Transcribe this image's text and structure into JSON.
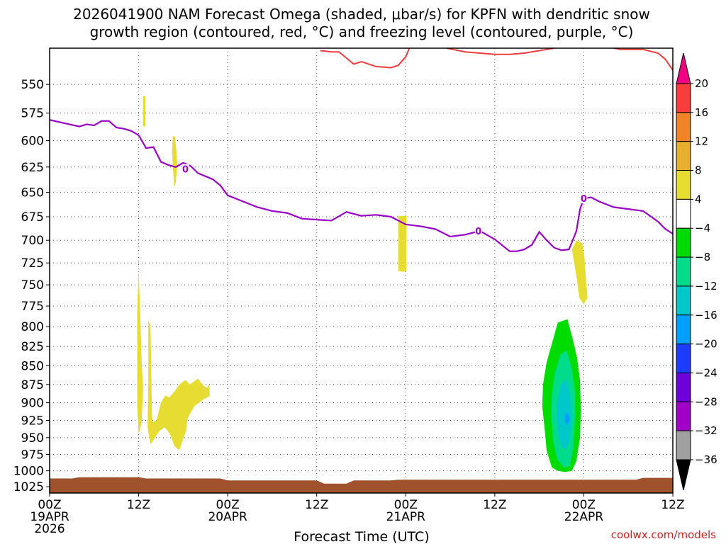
{
  "chart_data": {
    "type": "contour-timeheight",
    "title_line1": "2026041900 NAM Forecast Omega (shaded, μbar/s) for KPFN with dendritic snow",
    "title_line2": "growth region (contoured, red, °C) and freezing level (contoured, purple, °C)",
    "xlabel": "Forecast Time (UTC)",
    "credit": "coolwx.com/models",
    "credit_color": "#cc2222",
    "x_range_hours": [
      0,
      84
    ],
    "y_range_hPa": [
      520,
      1035
    ],
    "y_ticks": [
      550,
      575,
      600,
      625,
      650,
      675,
      700,
      725,
      750,
      775,
      800,
      825,
      850,
      875,
      900,
      925,
      950,
      975,
      1000,
      1025
    ],
    "x_ticks": [
      {
        "hour": 0,
        "l1": "00Z",
        "l2": "19APR",
        "l3": "2026"
      },
      {
        "hour": 12,
        "l1": "12Z",
        "l2": "",
        "l3": ""
      },
      {
        "hour": 24,
        "l1": "00Z",
        "l2": "20APR",
        "l3": ""
      },
      {
        "hour": 36,
        "l1": "12Z",
        "l2": "",
        "l3": ""
      },
      {
        "hour": 48,
        "l1": "00Z",
        "l2": "21APR",
        "l3": ""
      },
      {
        "hour": 60,
        "l1": "12Z",
        "l2": "",
        "l3": ""
      },
      {
        "hour": 72,
        "l1": "00Z",
        "l2": "22APR",
        "l3": ""
      },
      {
        "hour": 84,
        "l1": "12Z",
        "l2": "",
        "l3": ""
      }
    ],
    "freezing_level": {
      "color": "#9a00c8",
      "label": "0",
      "label_points": [
        [
          18.3,
          627
        ],
        [
          57.8,
          690
        ],
        [
          72.0,
          656
        ]
      ],
      "points": [
        [
          0,
          581
        ],
        [
          2,
          584
        ],
        [
          4,
          587
        ],
        [
          5,
          585
        ],
        [
          6,
          586
        ],
        [
          7,
          582
        ],
        [
          8,
          582
        ],
        [
          9,
          588
        ],
        [
          10,
          589
        ],
        [
          11,
          591
        ],
        [
          12,
          595
        ],
        [
          13,
          607
        ],
        [
          14,
          606
        ],
        [
          15,
          620
        ],
        [
          16,
          623
        ],
        [
          17,
          625
        ],
        [
          18,
          621
        ],
        [
          19,
          624
        ],
        [
          20,
          631
        ],
        [
          21,
          634
        ],
        [
          22,
          637
        ],
        [
          23,
          643
        ],
        [
          24,
          653
        ],
        [
          26,
          659
        ],
        [
          28,
          665
        ],
        [
          30,
          669
        ],
        [
          32,
          671
        ],
        [
          34,
          677
        ],
        [
          36,
          678
        ],
        [
          38,
          679
        ],
        [
          40,
          670
        ],
        [
          42,
          674
        ],
        [
          44,
          673
        ],
        [
          46,
          675
        ],
        [
          48,
          683
        ],
        [
          50,
          685
        ],
        [
          52,
          688
        ],
        [
          54,
          696
        ],
        [
          56,
          694
        ],
        [
          58,
          690
        ],
        [
          60,
          699
        ],
        [
          62,
          712
        ],
        [
          63,
          712
        ],
        [
          64,
          710
        ],
        [
          65,
          705
        ],
        [
          66,
          691
        ],
        [
          67,
          700
        ],
        [
          68,
          708
        ],
        [
          69,
          711
        ],
        [
          70,
          710
        ],
        [
          71,
          690
        ],
        [
          71.5,
          667
        ],
        [
          72,
          656
        ],
        [
          73,
          655
        ],
        [
          74,
          659
        ],
        [
          76,
          665
        ],
        [
          78,
          667
        ],
        [
          80,
          669
        ],
        [
          82,
          680
        ],
        [
          83,
          688
        ],
        [
          84,
          693
        ]
      ]
    },
    "dgz": {
      "color": "#ef3d3d",
      "segments": [
        [
          [
            36.5,
            522
          ],
          [
            38,
            523
          ],
          [
            39,
            523
          ],
          [
            40,
            528
          ],
          [
            41,
            533
          ],
          [
            42,
            531
          ],
          [
            44,
            535
          ],
          [
            46,
            536
          ],
          [
            47,
            534
          ],
          [
            48,
            527
          ],
          [
            48.5,
            520
          ]
        ],
        [
          [
            53.5,
            520
          ],
          [
            56,
            523
          ],
          [
            58,
            524
          ],
          [
            60,
            525
          ],
          [
            62,
            525
          ],
          [
            64,
            524
          ],
          [
            66,
            522
          ],
          [
            68,
            520
          ]
        ],
        [
          [
            76,
            520
          ],
          [
            77,
            521
          ],
          [
            78,
            521
          ],
          [
            80,
            521
          ],
          [
            82,
            524
          ],
          [
            83,
            529
          ],
          [
            84,
            538
          ]
        ]
      ]
    },
    "omega_levels": {
      "colors": [
        "#000000",
        "#a0a0a0",
        "#a000c8",
        "#6e00dc",
        "#1e3cff",
        "#00a0ff",
        "#00c8c8",
        "#00dc8c",
        "#00dc00",
        "#ffffff",
        "#e6dc32",
        "#e6af2d",
        "#f08228",
        "#fa3c3c",
        "#f00082"
      ],
      "labels": [
        "20",
        "16",
        "12",
        "8",
        "4",
        "−4",
        "−8",
        "−12",
        "−16",
        "−20",
        "−24",
        "−28",
        "−32",
        "−36"
      ]
    },
    "omega_areas": [
      {
        "color": "#e6dc32",
        "points": [
          [
            12.6,
            560
          ],
          [
            12.9,
            560
          ],
          [
            12.9,
            587
          ],
          [
            12.6,
            587
          ]
        ]
      },
      {
        "color": "#e6dc32",
        "points": [
          [
            16.6,
            596
          ],
          [
            16.9,
            596
          ],
          [
            17.1,
            610
          ],
          [
            17.2,
            623
          ],
          [
            17.0,
            640
          ],
          [
            16.8,
            645
          ],
          [
            16.6,
            623
          ],
          [
            16.5,
            610
          ]
        ]
      },
      {
        "color": "#e6dc32",
        "points": [
          [
            47.0,
            674
          ],
          [
            48.1,
            674
          ],
          [
            48.1,
            734
          ],
          [
            47.6,
            735
          ],
          [
            47.0,
            734
          ]
        ]
      },
      {
        "color": "#e6dc32",
        "points": [
          [
            70.4,
            710
          ],
          [
            71.0,
            700
          ],
          [
            71.8,
            703
          ],
          [
            72.1,
            720
          ],
          [
            72.3,
            745
          ],
          [
            72.5,
            765
          ],
          [
            72.0,
            773
          ],
          [
            71.4,
            765
          ],
          [
            71.0,
            740
          ],
          [
            70.6,
            720
          ]
        ]
      },
      {
        "color": "#e6dc32",
        "points": [
          [
            11.8,
            780
          ],
          [
            12.0,
            733
          ],
          [
            12.2,
            782
          ],
          [
            12.4,
            845
          ],
          [
            12.6,
            880
          ],
          [
            12.4,
            928
          ],
          [
            12.0,
            945
          ],
          [
            11.8,
            905
          ],
          [
            11.8,
            840
          ]
        ]
      },
      {
        "color": "#e6dc32",
        "points": [
          [
            13.3,
            792
          ],
          [
            13.6,
            800
          ],
          [
            13.7,
            860
          ],
          [
            13.8,
            920
          ],
          [
            13.9,
            928
          ],
          [
            14.4,
            925
          ],
          [
            15.0,
            900
          ],
          [
            15.6,
            890
          ],
          [
            16.1,
            893
          ],
          [
            16.8,
            885
          ],
          [
            17.5,
            875
          ],
          [
            18.3,
            869
          ],
          [
            18.9,
            875
          ],
          [
            19.3,
            872
          ],
          [
            20.0,
            867
          ],
          [
            20.6,
            875
          ],
          [
            21.2,
            880
          ],
          [
            21.5,
            875
          ],
          [
            21.6,
            891
          ],
          [
            20.8,
            895
          ],
          [
            19.5,
            905
          ],
          [
            18.6,
            922
          ],
          [
            18.4,
            940
          ],
          [
            17.9,
            955
          ],
          [
            17.5,
            969
          ],
          [
            16.8,
            962
          ],
          [
            16.2,
            944
          ],
          [
            15.5,
            935
          ],
          [
            14.8,
            940
          ],
          [
            13.9,
            955
          ],
          [
            13.6,
            960
          ],
          [
            13.2,
            935
          ],
          [
            13.3,
            870
          ]
        ]
      },
      {
        "color": "#00dc00",
        "points": [
          [
            66.5,
            875
          ],
          [
            67.0,
            845
          ],
          [
            67.8,
            818
          ],
          [
            68.5,
            795
          ],
          [
            69.8,
            791
          ],
          [
            70.5,
            815
          ],
          [
            71.1,
            840
          ],
          [
            71.5,
            870
          ],
          [
            71.6,
            910
          ],
          [
            71.5,
            950
          ],
          [
            71.0,
            985
          ],
          [
            70.4,
            1000
          ],
          [
            69.5,
            1002
          ],
          [
            68.5,
            1000
          ],
          [
            67.7,
            995
          ],
          [
            67.0,
            970
          ],
          [
            66.7,
            935
          ],
          [
            66.4,
            905
          ]
        ]
      },
      {
        "color": "#00dc8c",
        "points": [
          [
            67.7,
            890
          ],
          [
            68.1,
            860
          ],
          [
            68.9,
            835
          ],
          [
            69.7,
            830
          ],
          [
            70.4,
            855
          ],
          [
            70.8,
            885
          ],
          [
            70.8,
            925
          ],
          [
            70.6,
            965
          ],
          [
            70.1,
            993
          ],
          [
            69.3,
            995
          ],
          [
            68.4,
            982
          ],
          [
            67.9,
            955
          ],
          [
            67.6,
            920
          ]
        ]
      },
      {
        "color": "#00c8c8",
        "points": [
          [
            68.4,
            900
          ],
          [
            68.9,
            875
          ],
          [
            69.7,
            868
          ],
          [
            70.2,
            890
          ],
          [
            70.4,
            920
          ],
          [
            70.2,
            950
          ],
          [
            69.7,
            967
          ],
          [
            69.0,
            965
          ],
          [
            68.5,
            945
          ],
          [
            68.3,
            920
          ]
        ]
      },
      {
        "color": "#00a0ff",
        "points": [
          [
            69.4,
            918
          ],
          [
            69.8,
            913
          ],
          [
            70.1,
            923
          ],
          [
            69.8,
            932
          ],
          [
            69.5,
            928
          ]
        ]
      }
    ]
  }
}
